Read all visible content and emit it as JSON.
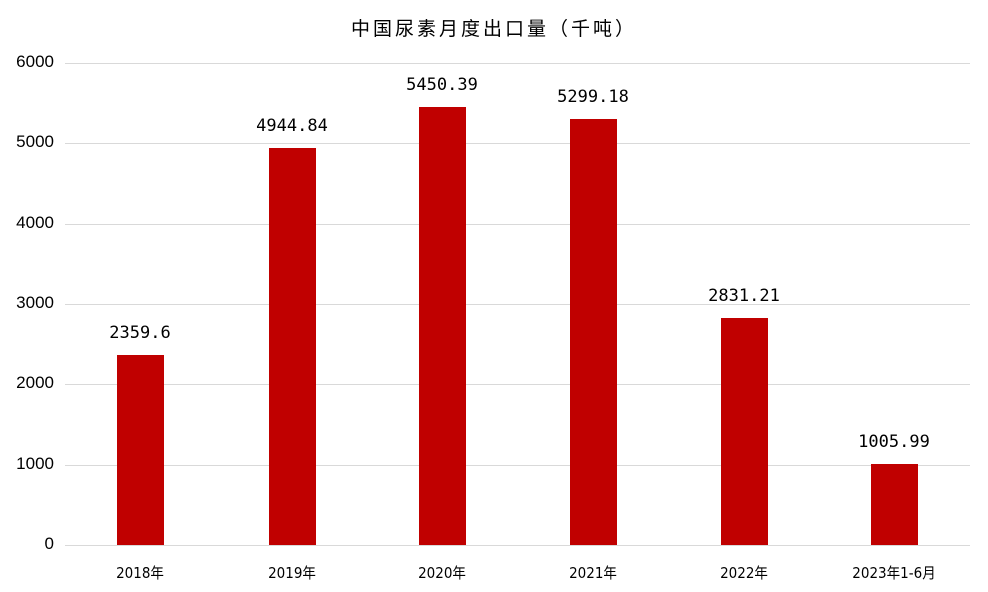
{
  "chart_data": {
    "type": "bar",
    "title": "中国尿素月度出口量（千吨）",
    "xlabel": "",
    "ylabel": "",
    "categories": [
      "2018年",
      "2019年",
      "2020年",
      "2021年",
      "2022年",
      "2023年1-6月"
    ],
    "values": [
      2359.6,
      4944.84,
      5450.39,
      5299.18,
      2831.21,
      1005.99
    ],
    "value_labels": [
      "2359.6",
      "4944.84",
      "5450.39",
      "5299.18",
      "2831.21",
      "1005.99"
    ],
    "ylim": [
      0,
      6000
    ],
    "yticks": [
      "0",
      "1000",
      "2000",
      "3000",
      "4000",
      "5000",
      "6000"
    ],
    "grid": true,
    "legend": "none",
    "bar_color": "#c00000"
  }
}
